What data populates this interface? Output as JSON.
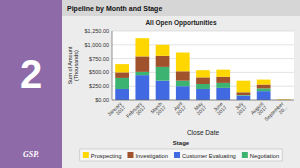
{
  "chart_data": {
    "type": "bar",
    "stacked": true,
    "title": "Pipeline by Month and Stage",
    "subtitle": "All Open Opportunities",
    "annotations": [
      "2",
      "GSP."
    ],
    "xlabel": "Close Date",
    "ylabel": "Sum of Amount\n(Thousands)",
    "legend_title": "Stage",
    "legend": "bottom",
    "grid": true,
    "categories": [
      "January\n2017",
      "February\n2017",
      "March\n2017",
      "April\n2017",
      "May\n2017",
      "June\n2017",
      "July\n2017",
      "August\n2017",
      "September\n20..."
    ],
    "series": [
      {
        "name": "Customer Evaluating",
        "color": "#4169E1",
        "values": [
          200,
          450,
          350,
          250,
          200,
          220,
          80,
          160,
          0
        ]
      },
      {
        "name": "Negotiation",
        "color": "#3CB371",
        "values": [
          200,
          60,
          250,
          100,
          90,
          90,
          10,
          50,
          0
        ]
      },
      {
        "name": "Investigation",
        "color": "#A0522D",
        "values": [
          100,
          280,
          200,
          170,
          120,
          110,
          50,
          70,
          5
        ]
      },
      {
        "name": "Prospecting",
        "color": "#FFD700",
        "values": [
          150,
          330,
          200,
          340,
          130,
          130,
          210,
          90,
          10
        ]
      }
    ],
    "ylim": [
      0,
      1250
    ],
    "yticks": [
      {
        "value": 0,
        "label": "$0.00"
      },
      {
        "value": 250,
        "label": "$250.00"
      },
      {
        "value": 500,
        "label": "$500.00"
      },
      {
        "value": 750,
        "label": "$750.00"
      },
      {
        "value": 1000,
        "label": "$1,000.00"
      },
      {
        "value": 1250,
        "label": "$1,250.00"
      }
    ]
  }
}
